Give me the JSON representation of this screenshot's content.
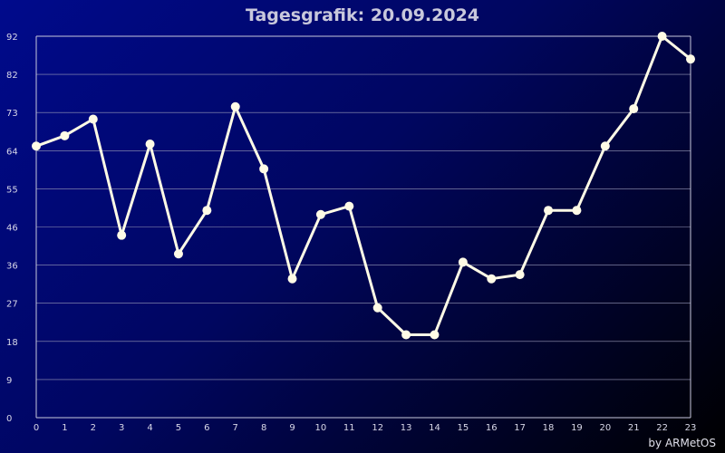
{
  "chart_data": {
    "type": "line",
    "title": "Tagesgrafik: 20.09.2024",
    "xlabel": "",
    "ylabel": "",
    "x": [
      0,
      1,
      2,
      3,
      4,
      5,
      6,
      7,
      8,
      9,
      10,
      11,
      12,
      13,
      14,
      15,
      16,
      17,
      18,
      19,
      20,
      21,
      22,
      23
    ],
    "series": [
      {
        "values": [
          65.5,
          68,
          72,
          44,
          66,
          39.5,
          50,
          75,
          60,
          33.5,
          49,
          51,
          26.5,
          20,
          20,
          37.5,
          33.5,
          34.5,
          50,
          50,
          65.5,
          74.5,
          92,
          86.5
        ],
        "color": "#fffbe6"
      }
    ],
    "xlim": [
      0,
      23
    ],
    "ylim": [
      0,
      92
    ],
    "y_ticks": [
      "0",
      "9",
      "18",
      "27",
      "36",
      "46",
      "55",
      "64",
      "73",
      "82",
      "92"
    ],
    "x_ticks": [
      "0",
      "1",
      "2",
      "3",
      "4",
      "5",
      "6",
      "7",
      "8",
      "9",
      "10",
      "11",
      "12",
      "13",
      "14",
      "15",
      "16",
      "17",
      "18",
      "19",
      "20",
      "21",
      "22",
      "23"
    ],
    "grid": true,
    "legend": "none"
  },
  "credit": "by ARMetOS",
  "colors": {
    "background_start": "#000a8c",
    "background_end": "#000000",
    "line": "#fffbe6",
    "grid": "#9a9ab8"
  }
}
